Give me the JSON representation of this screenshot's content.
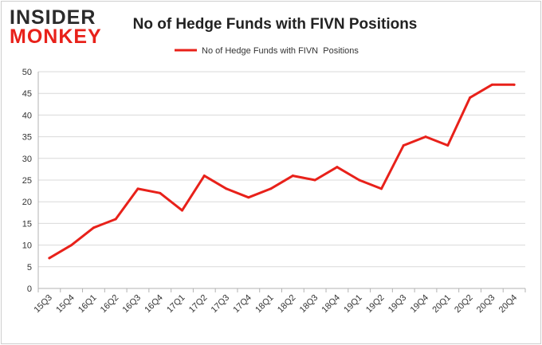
{
  "logo": {
    "line1": "INSIDER",
    "line2": "MONKEY"
  },
  "colors": {
    "series": "#e8211a",
    "logo_dark": "#2b2b2b",
    "logo_red": "#e8211a",
    "grid": "#d9d9d9",
    "axis": "#b3b3b3",
    "text": "#333333"
  },
  "chart_data": {
    "type": "line",
    "title": "No of Hedge Funds with FIVN Positions",
    "legend_position": "top-center",
    "grid": true,
    "ylim": [
      0,
      50
    ],
    "yticks": [
      0,
      5,
      10,
      15,
      20,
      25,
      30,
      35,
      40,
      45,
      50
    ],
    "categories": [
      "15Q3",
      "15Q4",
      "16Q1",
      "16Q2",
      "16Q3",
      "16Q4",
      "17Q1",
      "17Q2",
      "17Q3",
      "17Q4",
      "18Q1",
      "18Q2",
      "18Q3",
      "18Q4",
      "19Q1",
      "19Q2",
      "19Q3",
      "19Q4",
      "20Q1",
      "20Q2",
      "20Q3",
      "20Q4"
    ],
    "series": [
      {
        "name": "No of Hedge Funds with FIVN  Positions",
        "values": [
          7,
          10,
          14,
          16,
          23,
          22,
          18,
          26,
          23,
          21,
          23,
          26,
          25,
          28,
          25,
          23,
          33,
          35,
          33,
          44,
          47,
          47
        ]
      }
    ]
  }
}
